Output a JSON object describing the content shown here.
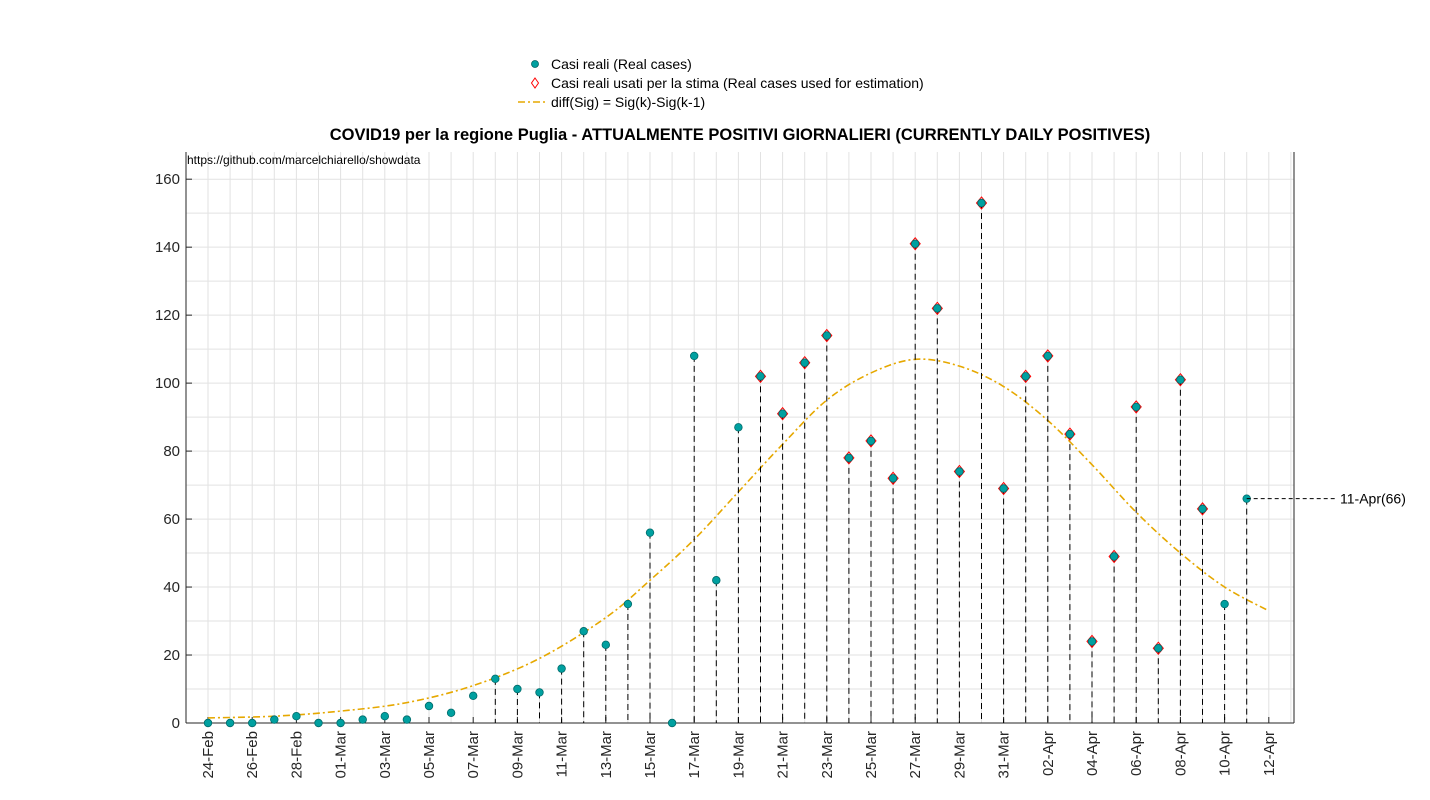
{
  "chart_data": {
    "type": "scatter",
    "title": "COVID19 per la regione Puglia - ATTUALMENTE POSITIVI GIORNALIERI (CURRENTLY DAILY POSITIVES)",
    "source_note": "https://github.com/marcelchiarello/showdata",
    "xlabel": "",
    "ylabel": "",
    "ylim": [
      0,
      168
    ],
    "yticks": [
      0,
      20,
      40,
      60,
      80,
      100,
      120,
      140,
      160
    ],
    "grid": true,
    "legend_position": "top-center",
    "x_tick_labels": [
      "24-Feb",
      "26-Feb",
      "28-Feb",
      "01-Mar",
      "03-Mar",
      "05-Mar",
      "07-Mar",
      "09-Mar",
      "11-Mar",
      "13-Mar",
      "15-Mar",
      "17-Mar",
      "19-Mar",
      "21-Mar",
      "23-Mar",
      "25-Mar",
      "27-Mar",
      "29-Mar",
      "31-Mar",
      "02-Apr",
      "04-Apr",
      "06-Apr",
      "08-Apr",
      "10-Apr",
      "12-Apr"
    ],
    "x_tick_every_days": 2,
    "dates": [
      "24-Feb",
      "25-Feb",
      "26-Feb",
      "27-Feb",
      "28-Feb",
      "29-Feb",
      "01-Mar",
      "02-Mar",
      "03-Mar",
      "04-Mar",
      "05-Mar",
      "06-Mar",
      "07-Mar",
      "08-Mar",
      "09-Mar",
      "10-Mar",
      "11-Mar",
      "12-Mar",
      "13-Mar",
      "14-Mar",
      "15-Mar",
      "16-Mar",
      "17-Mar",
      "18-Mar",
      "19-Mar",
      "20-Mar",
      "21-Mar",
      "22-Mar",
      "23-Mar",
      "24-Mar",
      "25-Mar",
      "26-Mar",
      "27-Mar",
      "28-Mar",
      "29-Mar",
      "30-Mar",
      "31-Mar",
      "01-Apr",
      "02-Apr",
      "03-Apr",
      "04-Apr",
      "05-Apr",
      "06-Apr",
      "07-Apr",
      "08-Apr",
      "09-Apr",
      "10-Apr",
      "11-Apr"
    ],
    "series": [
      {
        "name": "Casi reali (Real cases)",
        "color": "#00a0a0",
        "marker": "circle",
        "values": [
          0,
          0,
          0,
          1,
          2,
          0,
          0,
          1,
          2,
          1,
          5,
          3,
          8,
          13,
          10,
          9,
          16,
          27,
          23,
          35,
          56,
          0,
          108,
          42,
          87,
          102,
          91,
          106,
          114,
          78,
          83,
          72,
          141,
          122,
          74,
          153,
          69,
          102,
          108,
          85,
          24,
          49,
          93,
          22,
          101,
          63,
          35,
          66
        ]
      },
      {
        "name": "Casi reali usati per la stima (Real cases used for estimation)",
        "color": "#ff0000",
        "marker": "diamond",
        "used_from_date": "20-Mar",
        "used_to_date": "09-Apr"
      },
      {
        "name": "diff(Sig) = Sig(k)-Sig(k-1)",
        "color": "#e6a800",
        "style": "dash-dot",
        "dates": [
          "24-Feb",
          "27-Feb",
          "01-Mar",
          "04-Mar",
          "07-Mar",
          "10-Mar",
          "13-Mar",
          "15-Mar",
          "17-Mar",
          "19-Mar",
          "21-Mar",
          "23-Mar",
          "25-Mar",
          "27-Mar",
          "29-Mar",
          "31-Mar",
          "02-Apr",
          "04-Apr",
          "06-Apr",
          "08-Apr",
          "10-Apr",
          "12-Apr"
        ],
        "values": [
          1.5,
          2.0,
          3.5,
          6.0,
          11.0,
          19.0,
          31.0,
          42.0,
          54.0,
          68.0,
          82.0,
          95.0,
          103.0,
          107.0,
          105.0,
          99.0,
          89.0,
          76.0,
          62.0,
          50.0,
          40.0,
          33.0
        ]
      }
    ],
    "annotation": {
      "text": "11-Apr(66)",
      "date": "11-Apr",
      "value": 66
    }
  }
}
